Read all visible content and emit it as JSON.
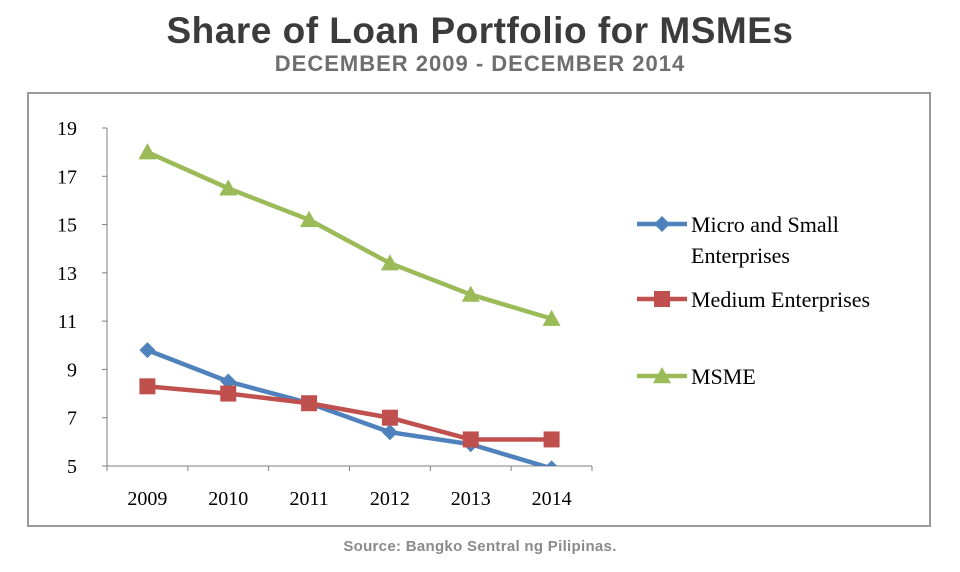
{
  "header": {
    "title": "Share of Loan Portfolio for MSMEs",
    "subtitle": "DECEMBER 2009 - DECEMBER 2014"
  },
  "footer": {
    "source": "Source: Bangko Sentral ng Pilipinas."
  },
  "chart_data": {
    "type": "line",
    "title": "",
    "xlabel": "",
    "ylabel": "",
    "categories": [
      "2009",
      "2010",
      "2011",
      "2012",
      "2013",
      "2014"
    ],
    "ylim": [
      5,
      19
    ],
    "yticks": [
      5,
      7,
      9,
      11,
      13,
      15,
      17,
      19
    ],
    "grid": false,
    "legend_position": "right",
    "series": [
      {
        "name": "Micro and Small Enterprises",
        "legend_lines": [
          "Micro and Small",
          "Enterprises"
        ],
        "values": [
          9.8,
          8.5,
          7.6,
          6.4,
          5.9,
          4.9
        ],
        "color": "#4f81bd",
        "marker": "diamond"
      },
      {
        "name": "Medium Enterprises",
        "legend_lines": [
          "Medium Enterprises"
        ],
        "values": [
          8.3,
          8.0,
          7.6,
          7.0,
          6.1,
          6.1
        ],
        "color": "#c0504d",
        "marker": "square"
      },
      {
        "name": "MSME",
        "legend_lines": [
          "MSME"
        ],
        "values": [
          18.0,
          16.5,
          15.2,
          13.4,
          12.1,
          11.1
        ],
        "color": "#9bbb59",
        "marker": "triangle"
      }
    ]
  }
}
